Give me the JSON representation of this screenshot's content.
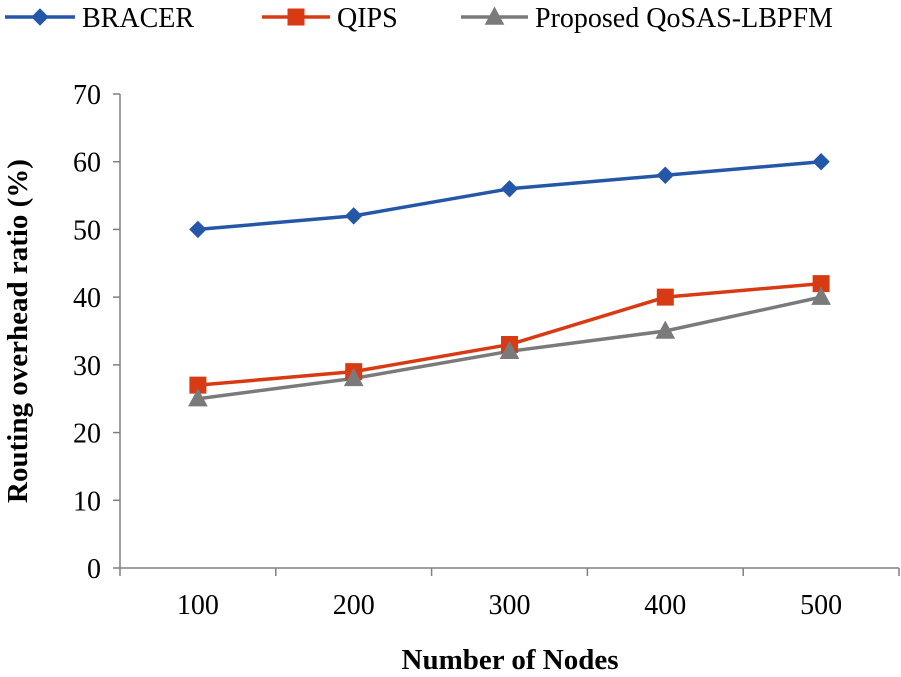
{
  "chart_data": {
    "type": "line",
    "title": "",
    "xlabel": "Number of Nodes",
    "ylabel": "Routing overhead ratio (%)",
    "categories": [
      "100",
      "200",
      "300",
      "400",
      "500"
    ],
    "ylim": [
      0,
      70
    ],
    "yticks": [
      "0",
      "10",
      "20",
      "30",
      "40",
      "50",
      "60",
      "70"
    ],
    "grid": false,
    "legend_position": "top",
    "series": [
      {
        "name": "BRACER",
        "marker": "diamond",
        "color": "#2457A7",
        "values": [
          50,
          52,
          56,
          58,
          60
        ]
      },
      {
        "name": "QIPS",
        "marker": "square",
        "color": "#D83B13",
        "values": [
          27,
          29,
          33,
          40,
          42
        ]
      },
      {
        "name": "Proposed QoSAS-LBPFM",
        "marker": "triangle",
        "color": "#7A7A7A",
        "values": [
          25,
          28,
          32,
          35,
          40
        ]
      }
    ]
  }
}
